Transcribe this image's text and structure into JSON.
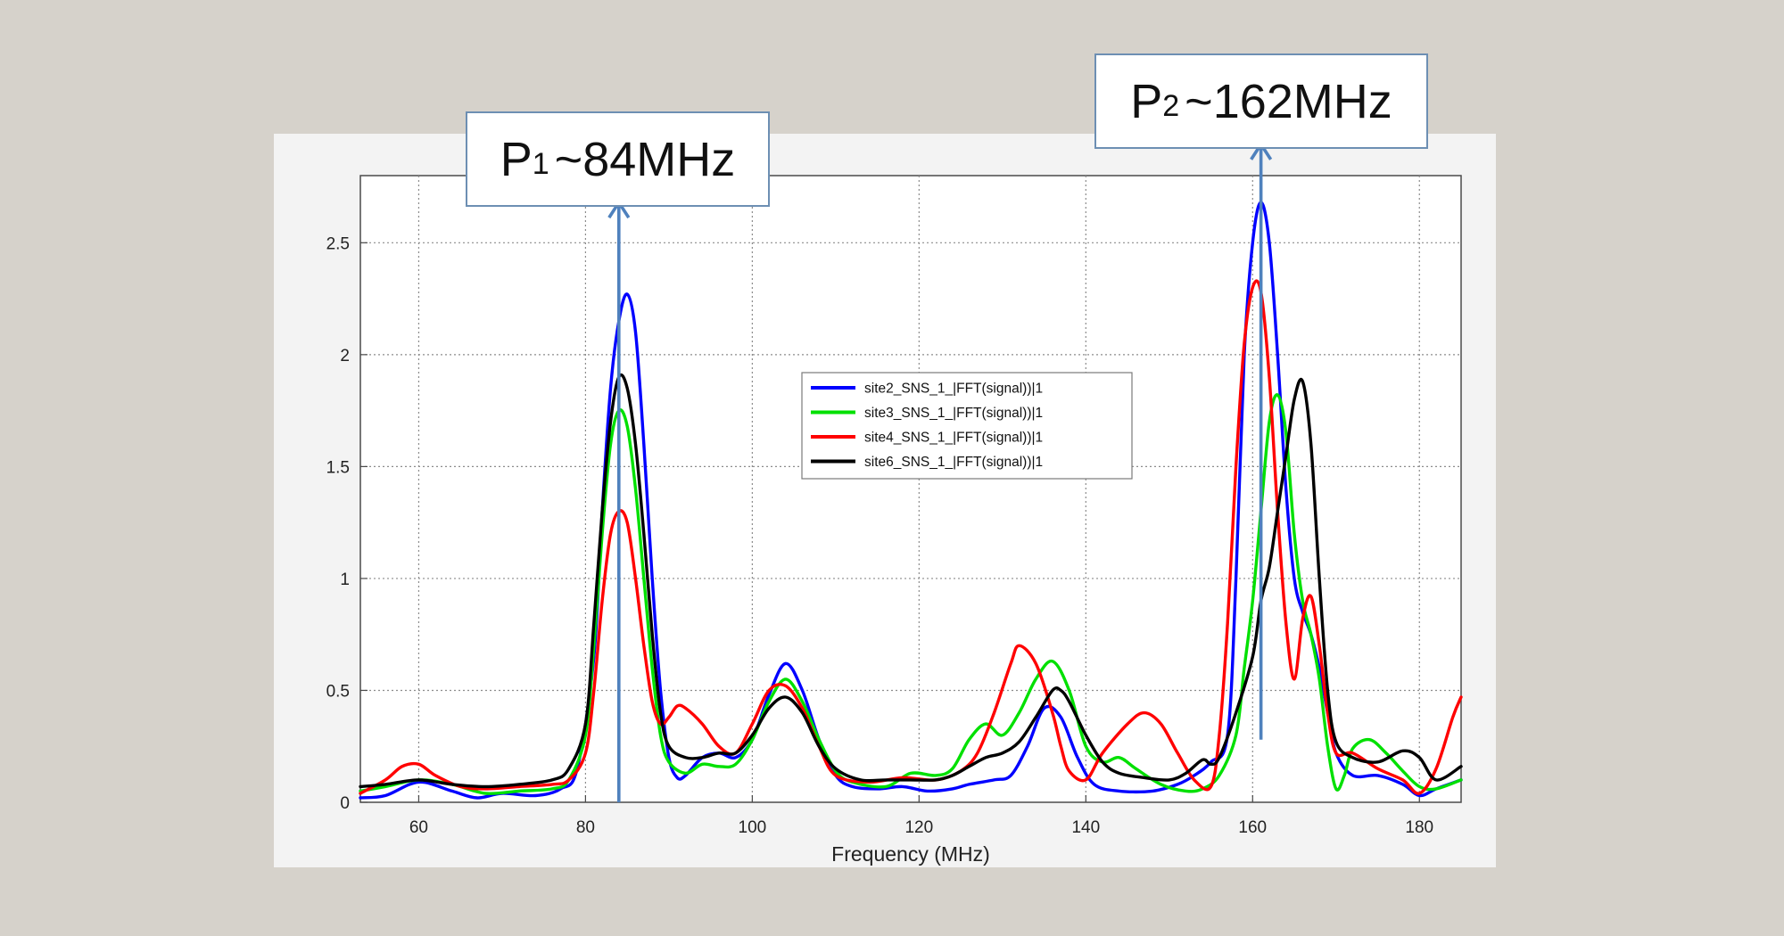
{
  "chart_data": {
    "type": "line",
    "title": "",
    "xlabel": "Frequency (MHz)",
    "ylabel": "",
    "xlim": [
      53,
      185
    ],
    "ylim": [
      0,
      2.8
    ],
    "xticks": [
      60,
      80,
      100,
      120,
      140,
      160,
      180
    ],
    "yticks": [
      0,
      0.5,
      1,
      1.5,
      2,
      2.5
    ],
    "xtick_labels": [
      "60",
      "80",
      "100",
      "120",
      "140",
      "160",
      "180"
    ],
    "ytick_labels": [
      "0",
      "0.5",
      "1",
      "1.5",
      "2",
      "2.5"
    ],
    "grid": true,
    "legend_position": "center",
    "series": [
      {
        "name": "site2_SNS_1_|FFT(signal))|1",
        "color": "#0000ff",
        "points": [
          [
            53,
            0.02
          ],
          [
            56,
            0.03
          ],
          [
            60,
            0.09
          ],
          [
            64,
            0.05
          ],
          [
            67,
            0.02
          ],
          [
            70,
            0.04
          ],
          [
            74,
            0.03
          ],
          [
            77,
            0.06
          ],
          [
            79,
            0.15
          ],
          [
            81,
            0.65
          ],
          [
            82,
            1.3
          ],
          [
            83,
            1.85
          ],
          [
            84,
            2.15
          ],
          [
            85,
            2.27
          ],
          [
            86,
            2.1
          ],
          [
            87,
            1.6
          ],
          [
            88,
            1.0
          ],
          [
            89,
            0.5
          ],
          [
            90,
            0.2
          ],
          [
            91,
            0.11
          ],
          [
            92,
            0.12
          ],
          [
            94,
            0.2
          ],
          [
            96,
            0.22
          ],
          [
            98,
            0.2
          ],
          [
            100,
            0.28
          ],
          [
            102,
            0.48
          ],
          [
            104,
            0.62
          ],
          [
            106,
            0.5
          ],
          [
            108,
            0.28
          ],
          [
            110,
            0.12
          ],
          [
            112,
            0.07
          ],
          [
            115,
            0.06
          ],
          [
            118,
            0.07
          ],
          [
            121,
            0.05
          ],
          [
            124,
            0.06
          ],
          [
            126,
            0.08
          ],
          [
            129,
            0.1
          ],
          [
            131,
            0.12
          ],
          [
            133,
            0.25
          ],
          [
            135,
            0.42
          ],
          [
            137,
            0.38
          ],
          [
            139,
            0.2
          ],
          [
            141,
            0.08
          ],
          [
            144,
            0.05
          ],
          [
            148,
            0.05
          ],
          [
            151,
            0.08
          ],
          [
            153,
            0.12
          ],
          [
            155,
            0.18
          ],
          [
            157,
            0.3
          ],
          [
            158,
            1.0
          ],
          [
            159,
            2.0
          ],
          [
            160,
            2.5
          ],
          [
            161,
            2.68
          ],
          [
            162,
            2.5
          ],
          [
            163,
            2.0
          ],
          [
            164,
            1.4
          ],
          [
            165,
            1.0
          ],
          [
            166,
            0.85
          ],
          [
            167,
            0.75
          ],
          [
            168,
            0.6
          ],
          [
            169,
            0.4
          ],
          [
            170,
            0.22
          ],
          [
            172,
            0.12
          ],
          [
            175,
            0.12
          ],
          [
            178,
            0.08
          ],
          [
            180,
            0.03
          ],
          [
            182,
            0.06
          ],
          [
            185,
            0.1
          ]
        ]
      },
      {
        "name": "site3_SNS_1_|FFT(signal))|1",
        "color": "#00e000",
        "points": [
          [
            53,
            0.05
          ],
          [
            56,
            0.07
          ],
          [
            60,
            0.1
          ],
          [
            64,
            0.08
          ],
          [
            68,
            0.04
          ],
          [
            72,
            0.05
          ],
          [
            76,
            0.06
          ],
          [
            78,
            0.1
          ],
          [
            80,
            0.3
          ],
          [
            81,
            0.7
          ],
          [
            82,
            1.2
          ],
          [
            83,
            1.6
          ],
          [
            84,
            1.75
          ],
          [
            85,
            1.68
          ],
          [
            86,
            1.4
          ],
          [
            87,
            1.0
          ],
          [
            88,
            0.6
          ],
          [
            89,
            0.3
          ],
          [
            90,
            0.18
          ],
          [
            92,
            0.13
          ],
          [
            94,
            0.17
          ],
          [
            96,
            0.16
          ],
          [
            98,
            0.17
          ],
          [
            100,
            0.28
          ],
          [
            102,
            0.45
          ],
          [
            104,
            0.55
          ],
          [
            106,
            0.45
          ],
          [
            108,
            0.28
          ],
          [
            110,
            0.14
          ],
          [
            112,
            0.09
          ],
          [
            116,
            0.07
          ],
          [
            119,
            0.13
          ],
          [
            122,
            0.12
          ],
          [
            124,
            0.15
          ],
          [
            126,
            0.28
          ],
          [
            128,
            0.35
          ],
          [
            130,
            0.3
          ],
          [
            132,
            0.4
          ],
          [
            134,
            0.55
          ],
          [
            136,
            0.63
          ],
          [
            138,
            0.5
          ],
          [
            140,
            0.25
          ],
          [
            142,
            0.18
          ],
          [
            144,
            0.2
          ],
          [
            146,
            0.15
          ],
          [
            149,
            0.08
          ],
          [
            152,
            0.05
          ],
          [
            154,
            0.06
          ],
          [
            156,
            0.12
          ],
          [
            158,
            0.3
          ],
          [
            159,
            0.6
          ],
          [
            160,
            0.9
          ],
          [
            161,
            1.3
          ],
          [
            162,
            1.7
          ],
          [
            163,
            1.82
          ],
          [
            164,
            1.65
          ],
          [
            165,
            1.2
          ],
          [
            166,
            0.9
          ],
          [
            167,
            0.75
          ],
          [
            168,
            0.55
          ],
          [
            169,
            0.25
          ],
          [
            170,
            0.06
          ],
          [
            171,
            0.12
          ],
          [
            172,
            0.24
          ],
          [
            174,
            0.28
          ],
          [
            176,
            0.22
          ],
          [
            178,
            0.14
          ],
          [
            180,
            0.07
          ],
          [
            182,
            0.06
          ],
          [
            185,
            0.1
          ]
        ]
      },
      {
        "name": "site4_SNS_1_|FFT(signal))|1",
        "color": "#ff0000",
        "points": [
          [
            53,
            0.04
          ],
          [
            56,
            0.1
          ],
          [
            58,
            0.16
          ],
          [
            60,
            0.17
          ],
          [
            62,
            0.12
          ],
          [
            65,
            0.07
          ],
          [
            68,
            0.06
          ],
          [
            72,
            0.07
          ],
          [
            76,
            0.08
          ],
          [
            78,
            0.1
          ],
          [
            80,
            0.22
          ],
          [
            81,
            0.5
          ],
          [
            82,
            0.9
          ],
          [
            83,
            1.2
          ],
          [
            84,
            1.3
          ],
          [
            85,
            1.25
          ],
          [
            86,
            1.0
          ],
          [
            87,
            0.7
          ],
          [
            88,
            0.45
          ],
          [
            89,
            0.35
          ],
          [
            90,
            0.38
          ],
          [
            91,
            0.43
          ],
          [
            92,
            0.42
          ],
          [
            94,
            0.35
          ],
          [
            96,
            0.25
          ],
          [
            98,
            0.22
          ],
          [
            100,
            0.35
          ],
          [
            102,
            0.5
          ],
          [
            104,
            0.52
          ],
          [
            106,
            0.42
          ],
          [
            108,
            0.25
          ],
          [
            110,
            0.12
          ],
          [
            114,
            0.09
          ],
          [
            118,
            0.11
          ],
          [
            122,
            0.1
          ],
          [
            125,
            0.14
          ],
          [
            127,
            0.22
          ],
          [
            129,
            0.4
          ],
          [
            131,
            0.62
          ],
          [
            132,
            0.7
          ],
          [
            134,
            0.62
          ],
          [
            136,
            0.4
          ],
          [
            137,
            0.25
          ],
          [
            138,
            0.14
          ],
          [
            140,
            0.1
          ],
          [
            142,
            0.22
          ],
          [
            145,
            0.35
          ],
          [
            147,
            0.4
          ],
          [
            149,
            0.35
          ],
          [
            151,
            0.22
          ],
          [
            153,
            0.1
          ],
          [
            155,
            0.07
          ],
          [
            156,
            0.3
          ],
          [
            157,
            0.8
          ],
          [
            158,
            1.5
          ],
          [
            159,
            2.05
          ],
          [
            160,
            2.3
          ],
          [
            161,
            2.28
          ],
          [
            162,
            1.9
          ],
          [
            163,
            1.3
          ],
          [
            164,
            0.8
          ],
          [
            165,
            0.55
          ],
          [
            166,
            0.82
          ],
          [
            167,
            0.92
          ],
          [
            168,
            0.7
          ],
          [
            169,
            0.4
          ],
          [
            170,
            0.22
          ],
          [
            172,
            0.22
          ],
          [
            175,
            0.15
          ],
          [
            178,
            0.1
          ],
          [
            180,
            0.04
          ],
          [
            182,
            0.15
          ],
          [
            184,
            0.38
          ],
          [
            185,
            0.47
          ]
        ]
      },
      {
        "name": "site6_SNS_1_|FFT(signal))|1",
        "color": "#000000",
        "points": [
          [
            53,
            0.07
          ],
          [
            56,
            0.08
          ],
          [
            60,
            0.1
          ],
          [
            64,
            0.08
          ],
          [
            68,
            0.07
          ],
          [
            72,
            0.08
          ],
          [
            76,
            0.1
          ],
          [
            78,
            0.15
          ],
          [
            80,
            0.35
          ],
          [
            81,
            0.8
          ],
          [
            82,
            1.3
          ],
          [
            83,
            1.7
          ],
          [
            84,
            1.9
          ],
          [
            85,
            1.85
          ],
          [
            86,
            1.6
          ],
          [
            87,
            1.2
          ],
          [
            88,
            0.75
          ],
          [
            89,
            0.4
          ],
          [
            90,
            0.25
          ],
          [
            92,
            0.2
          ],
          [
            94,
            0.2
          ],
          [
            96,
            0.22
          ],
          [
            98,
            0.22
          ],
          [
            100,
            0.3
          ],
          [
            102,
            0.42
          ],
          [
            104,
            0.47
          ],
          [
            106,
            0.4
          ],
          [
            108,
            0.25
          ],
          [
            110,
            0.15
          ],
          [
            113,
            0.1
          ],
          [
            116,
            0.1
          ],
          [
            119,
            0.1
          ],
          [
            122,
            0.1
          ],
          [
            124,
            0.12
          ],
          [
            126,
            0.16
          ],
          [
            128,
            0.2
          ],
          [
            130,
            0.22
          ],
          [
            132,
            0.27
          ],
          [
            134,
            0.38
          ],
          [
            136,
            0.5
          ],
          [
            137,
            0.5
          ],
          [
            138,
            0.45
          ],
          [
            140,
            0.3
          ],
          [
            142,
            0.18
          ],
          [
            144,
            0.13
          ],
          [
            147,
            0.11
          ],
          [
            150,
            0.1
          ],
          [
            152,
            0.13
          ],
          [
            154,
            0.19
          ],
          [
            155,
            0.17
          ],
          [
            156,
            0.2
          ],
          [
            158,
            0.4
          ],
          [
            160,
            0.65
          ],
          [
            161,
            0.9
          ],
          [
            162,
            1.05
          ],
          [
            163,
            1.3
          ],
          [
            164,
            1.55
          ],
          [
            165,
            1.8
          ],
          [
            166,
            1.88
          ],
          [
            167,
            1.6
          ],
          [
            168,
            1.0
          ],
          [
            169,
            0.5
          ],
          [
            170,
            0.27
          ],
          [
            172,
            0.2
          ],
          [
            175,
            0.18
          ],
          [
            178,
            0.23
          ],
          [
            180,
            0.2
          ],
          [
            182,
            0.1
          ],
          [
            185,
            0.16
          ]
        ]
      }
    ],
    "annotations": [
      {
        "kind": "arrow",
        "x": 84,
        "y_from": 0,
        "y_to": 2.68,
        "color": "#4f81bd",
        "label_parts": [
          "P",
          "1",
          "~84MHz"
        ]
      },
      {
        "kind": "arrow",
        "x": 161,
        "y_from": 0.28,
        "y_to": 2.94,
        "color": "#4f81bd",
        "label_parts": [
          "P",
          "2",
          "~162MHz"
        ]
      }
    ]
  }
}
